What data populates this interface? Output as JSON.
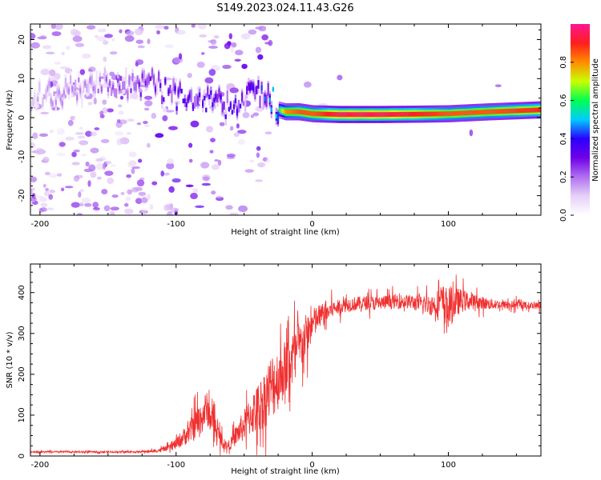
{
  "title": "S149.2023.024.11.43.G26",
  "colors": {
    "snr_line": "#f03030",
    "frame": "#000000",
    "colormap": [
      "#ffffff",
      "#e6d0f8",
      "#b070f0",
      "#7000e8",
      "#2a00ff",
      "#00ccff",
      "#00ff50",
      "#c8ff00",
      "#ff8c00",
      "#ff1e1e",
      "#ff1493"
    ]
  },
  "chart_data": [
    {
      "type": "heatmap",
      "xlabel": "Height of straight line (km)",
      "ylabel": "Frequency (Hz)",
      "xlim": [
        -207,
        168
      ],
      "ylim": [
        -25,
        24
      ],
      "xticks": [
        -200,
        -100,
        0,
        100
      ],
      "xtick_labels": [
        "-200",
        "-100",
        "0",
        "100"
      ],
      "yticks": [
        -20,
        -10,
        0,
        10,
        20
      ],
      "ytick_labels": [
        "-20",
        "-10",
        "0",
        "10",
        "20"
      ],
      "colorbar": {
        "label": "Normalized spectral amplitude",
        "range": [
          0,
          1
        ],
        "ticks": [
          0.0,
          0.2,
          0.4,
          0.6,
          0.8
        ],
        "tick_labels": [
          "0.0",
          "0.2",
          "0.4",
          "0.6",
          "0.8"
        ]
      },
      "ridge": {
        "x": [
          -207,
          -160,
          -120,
          -100,
          -80,
          -60,
          -45,
          -35,
          -28,
          -25,
          -20,
          -10,
          0,
          20,
          50,
          80,
          100,
          130,
          168
        ],
        "y": [
          5,
          8,
          9,
          5,
          4,
          3,
          6,
          6,
          4,
          2,
          1.5,
          1.5,
          1,
          0.8,
          0.8,
          0.9,
          1,
          1.5,
          2
        ],
        "peak_amplitude": [
          0.15,
          0.2,
          0.3,
          0.35,
          0.35,
          0.35,
          0.4,
          0.45,
          0.5,
          0.6,
          0.8,
          0.85,
          0.85,
          0.95,
          0.95,
          0.9,
          0.85,
          0.85,
          0.9
        ]
      }
    },
    {
      "type": "line",
      "xlabel": "Height of straight line (km)",
      "ylabel": "SNR (10 * v/v)",
      "xlim": [
        -207,
        168
      ],
      "ylim": [
        0,
        470
      ],
      "xticks": [
        -200,
        -100,
        0,
        100
      ],
      "xtick_labels": [
        "-200",
        "-100",
        "0",
        "100"
      ],
      "yticks": [
        0,
        100,
        200,
        300,
        400
      ],
      "ytick_labels": [
        "0",
        "100",
        "200",
        "300",
        "400"
      ],
      "series": [
        {
          "x": [
            -207,
            -190,
            -170,
            -150,
            -130,
            -115,
            -105,
            -100,
            -95,
            -90,
            -85,
            -80,
            -78,
            -75,
            -72,
            -70,
            -65,
            -62,
            -60,
            -55,
            -50,
            -45,
            -40,
            -35,
            -30,
            -25,
            -20,
            -15,
            -10,
            -5,
            0,
            5,
            10,
            15,
            20,
            25,
            30,
            40,
            50,
            60,
            70,
            80,
            90,
            95,
            100,
            105,
            110,
            120,
            130,
            140,
            150,
            160,
            168
          ],
          "y": [
            10,
            10,
            10,
            10,
            10,
            12,
            20,
            30,
            45,
            60,
            80,
            100,
            120,
            95,
            80,
            60,
            30,
            25,
            30,
            55,
            75,
            100,
            115,
            140,
            170,
            190,
            215,
            240,
            260,
            290,
            320,
            340,
            350,
            360,
            365,
            370,
            372,
            375,
            375,
            378,
            378,
            372,
            370,
            380,
            360,
            375,
            380,
            378,
            372,
            370,
            370,
            368,
            368
          ],
          "noise": [
            3,
            3,
            3,
            3,
            3,
            5,
            10,
            20,
            30,
            40,
            55,
            60,
            60,
            50,
            45,
            35,
            20,
            15,
            20,
            40,
            55,
            70,
            90,
            100,
            120,
            110,
            100,
            100,
            90,
            80,
            60,
            45,
            40,
            30,
            25,
            25,
            25,
            25,
            25,
            25,
            25,
            30,
            40,
            60,
            75,
            55,
            40,
            25,
            20,
            15,
            15,
            12,
            12
          ]
        }
      ]
    }
  ]
}
